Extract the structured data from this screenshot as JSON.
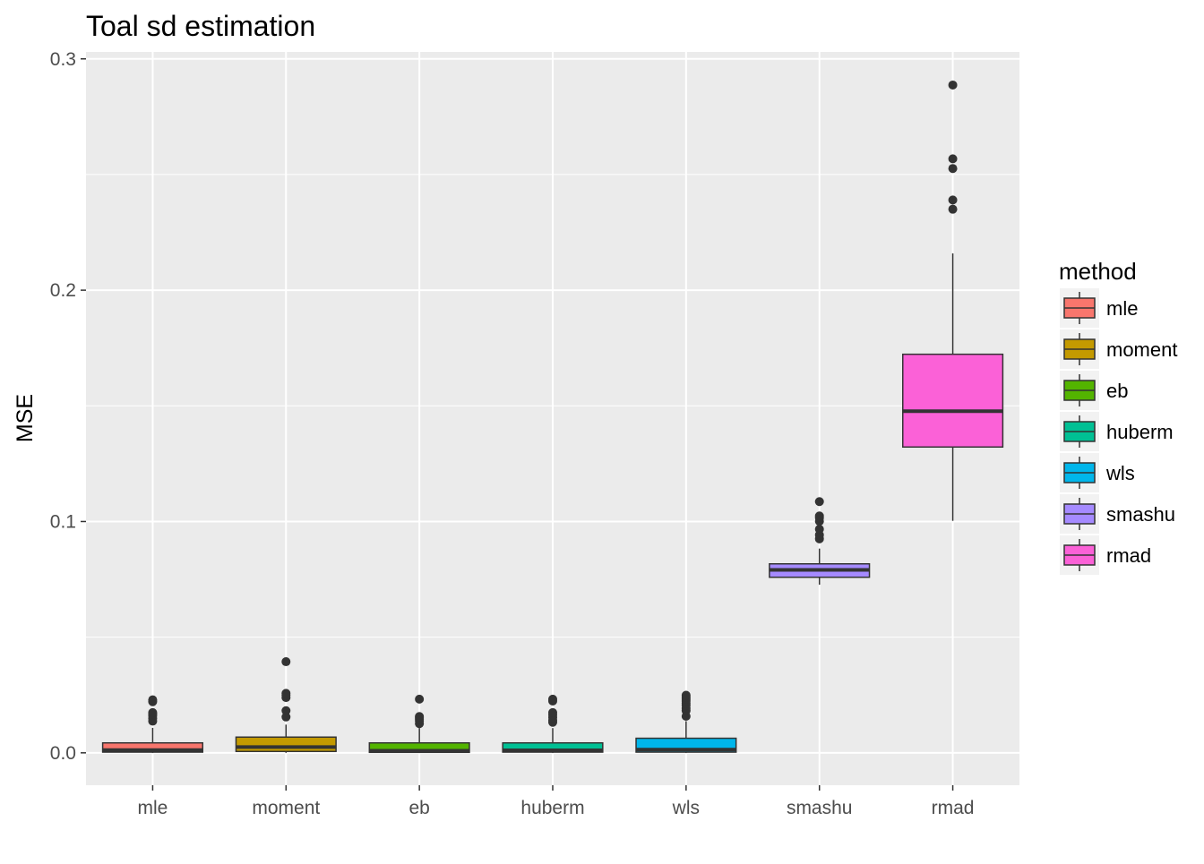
{
  "chart_data": {
    "type": "boxplot",
    "title": "Toal sd estimation",
    "xlabel": "",
    "ylabel": "MSE",
    "ylim": [
      -0.014,
      0.303
    ],
    "y_ticks": [
      0.0,
      0.1,
      0.2,
      0.3
    ],
    "y_tick_labels": [
      "0.0",
      "0.1",
      "0.2",
      "0.3"
    ],
    "grid": true,
    "legend": {
      "title": "method",
      "placement": "right"
    },
    "categories": [
      "mle",
      "moment",
      "eb",
      "huberm",
      "wls",
      "smashu",
      "rmad"
    ],
    "colors": [
      "#F8766D",
      "#C49A00",
      "#53B400",
      "#00C094",
      "#00B6EB",
      "#A58AFF",
      "#FB61D7"
    ],
    "boxes": [
      {
        "name": "mle",
        "min": 0.0,
        "q1": 0.0003,
        "median": 0.0012,
        "q3": 0.0043,
        "max": 0.0108,
        "outliers": [
          0.0137,
          0.0149,
          0.0161,
          0.0168,
          0.0174,
          0.0221,
          0.0229
        ]
      },
      {
        "name": "moment",
        "min": 0.0,
        "q1": 0.0006,
        "median": 0.0025,
        "q3": 0.0068,
        "max": 0.0122,
        "outliers": [
          0.0155,
          0.0182,
          0.0239,
          0.0249,
          0.0257,
          0.0394
        ]
      },
      {
        "name": "eb",
        "min": 0.0,
        "q1": 0.0002,
        "median": 0.0009,
        "q3": 0.0043,
        "max": 0.0107,
        "outliers": [
          0.0126,
          0.0138,
          0.0145,
          0.0151,
          0.0157,
          0.0232
        ]
      },
      {
        "name": "huberm",
        "min": 0.0,
        "q1": 0.0003,
        "median": 0.0011,
        "q3": 0.0043,
        "max": 0.0107,
        "outliers": [
          0.0132,
          0.0141,
          0.0153,
          0.0165,
          0.0174,
          0.0224,
          0.0232
        ]
      },
      {
        "name": "wls",
        "min": 0.0,
        "q1": 0.0003,
        "median": 0.0014,
        "q3": 0.0063,
        "max": 0.0137,
        "outliers": [
          0.0158,
          0.0182,
          0.0193,
          0.0206,
          0.0214,
          0.0224,
          0.0232,
          0.024,
          0.0249
        ]
      },
      {
        "name": "smashu",
        "min": 0.0727,
        "q1": 0.0759,
        "median": 0.0791,
        "q3": 0.0817,
        "max": 0.0883,
        "outliers": [
          0.0925,
          0.0942,
          0.0967,
          0.1001,
          0.1016,
          0.1024,
          0.1086
        ]
      },
      {
        "name": "rmad",
        "min": 0.1003,
        "q1": 0.1322,
        "median": 0.1477,
        "q3": 0.1723,
        "max": 0.2159,
        "outliers": [
          0.235,
          0.239,
          0.2526,
          0.2568,
          0.2887
        ]
      }
    ]
  }
}
